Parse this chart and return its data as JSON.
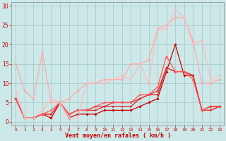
{
  "background_color": "#cde8e8",
  "grid_color": "#aacccc",
  "xlabel": "Vent moyen/en rafales ( km/h )",
  "xlabel_color": "#cc0000",
  "tick_color": "#cc0000",
  "xlim": [
    -0.5,
    23.5
  ],
  "ylim": [
    -1,
    31
  ],
  "xticks": [
    0,
    1,
    2,
    3,
    4,
    5,
    6,
    7,
    8,
    9,
    10,
    11,
    12,
    13,
    14,
    15,
    16,
    17,
    18,
    19,
    20,
    21,
    22,
    23
  ],
  "yticks": [
    0,
    5,
    10,
    15,
    20,
    25,
    30
  ],
  "lines": [
    {
      "x": [
        0,
        1,
        2,
        3,
        4,
        5,
        6,
        7,
        8,
        9,
        10,
        11,
        12,
        13,
        14,
        15,
        16,
        17,
        18,
        19,
        20,
        21,
        22,
        23
      ],
      "y": [
        6,
        1,
        1,
        2,
        1,
        5,
        1,
        2,
        2,
        2,
        3,
        3,
        3,
        3,
        4,
        5,
        6,
        13,
        20,
        12,
        12,
        3,
        4,
        4
      ],
      "color": "#cc0000",
      "lw": 0.9,
      "marker": "D",
      "ms": 1.8
    },
    {
      "x": [
        0,
        1,
        2,
        3,
        4,
        5,
        6,
        7,
        8,
        9,
        10,
        11,
        12,
        13,
        14,
        15,
        16,
        17,
        18,
        19,
        20,
        21,
        22,
        23
      ],
      "y": [
        6,
        1,
        1,
        2,
        2,
        5,
        2,
        3,
        3,
        3,
        4,
        4,
        4,
        4,
        6,
        7,
        7,
        14,
        13,
        13,
        12,
        3,
        3,
        4
      ],
      "color": "#dd2222",
      "lw": 0.9,
      "marker": ">",
      "ms": 1.8
    },
    {
      "x": [
        0,
        1,
        2,
        3,
        4,
        5,
        6,
        7,
        8,
        9,
        10,
        11,
        12,
        13,
        14,
        15,
        16,
        17,
        18,
        19,
        20,
        21,
        22,
        23
      ],
      "y": [
        6,
        1,
        1,
        2,
        2,
        5,
        2,
        3,
        3,
        4,
        4,
        5,
        5,
        5,
        6,
        7,
        8,
        14,
        13,
        13,
        12,
        3,
        3,
        4
      ],
      "color": "#ee3333",
      "lw": 0.9,
      "marker": "s",
      "ms": 1.8
    },
    {
      "x": [
        0,
        1,
        2,
        3,
        4,
        5,
        6,
        7,
        8,
        9,
        10,
        11,
        12,
        13,
        14,
        15,
        16,
        17,
        18,
        19,
        20,
        21,
        22,
        23
      ],
      "y": [
        6,
        1,
        1,
        2,
        3,
        5,
        2,
        3,
        3,
        4,
        5,
        5,
        5,
        5,
        7,
        7,
        9,
        17,
        13,
        13,
        11,
        3,
        4,
        4
      ],
      "color": "#ff5555",
      "lw": 0.9,
      "marker": "^",
      "ms": 1.8
    },
    {
      "x": [
        0,
        1,
        2,
        3,
        4,
        5,
        6,
        7,
        8,
        9,
        10,
        11,
        12,
        13,
        14,
        15,
        16,
        17,
        18,
        19,
        20,
        21,
        22,
        23
      ],
      "y": [
        15,
        8,
        6,
        18,
        5,
        5,
        6,
        8,
        10,
        10,
        11,
        11,
        11,
        15,
        15,
        16,
        24,
        25,
        27,
        27,
        21,
        10,
        10,
        11
      ],
      "color": "#ffaaaa",
      "lw": 0.9,
      "marker": "D",
      "ms": 1.8
    },
    {
      "x": [
        0,
        1,
        2,
        3,
        4,
        5,
        6,
        7,
        8,
        9,
        10,
        11,
        12,
        13,
        14,
        15,
        16,
        17,
        18,
        19,
        20,
        21,
        22,
        23
      ],
      "y": [
        8,
        1,
        1,
        3,
        6,
        5,
        1,
        1,
        10,
        10,
        10,
        11,
        12,
        11,
        15,
        10,
        24,
        24,
        29,
        27,
        20,
        21,
        11,
        12
      ],
      "color": "#ffbbbb",
      "lw": 0.9,
      "marker": "o",
      "ms": 1.8
    }
  ]
}
